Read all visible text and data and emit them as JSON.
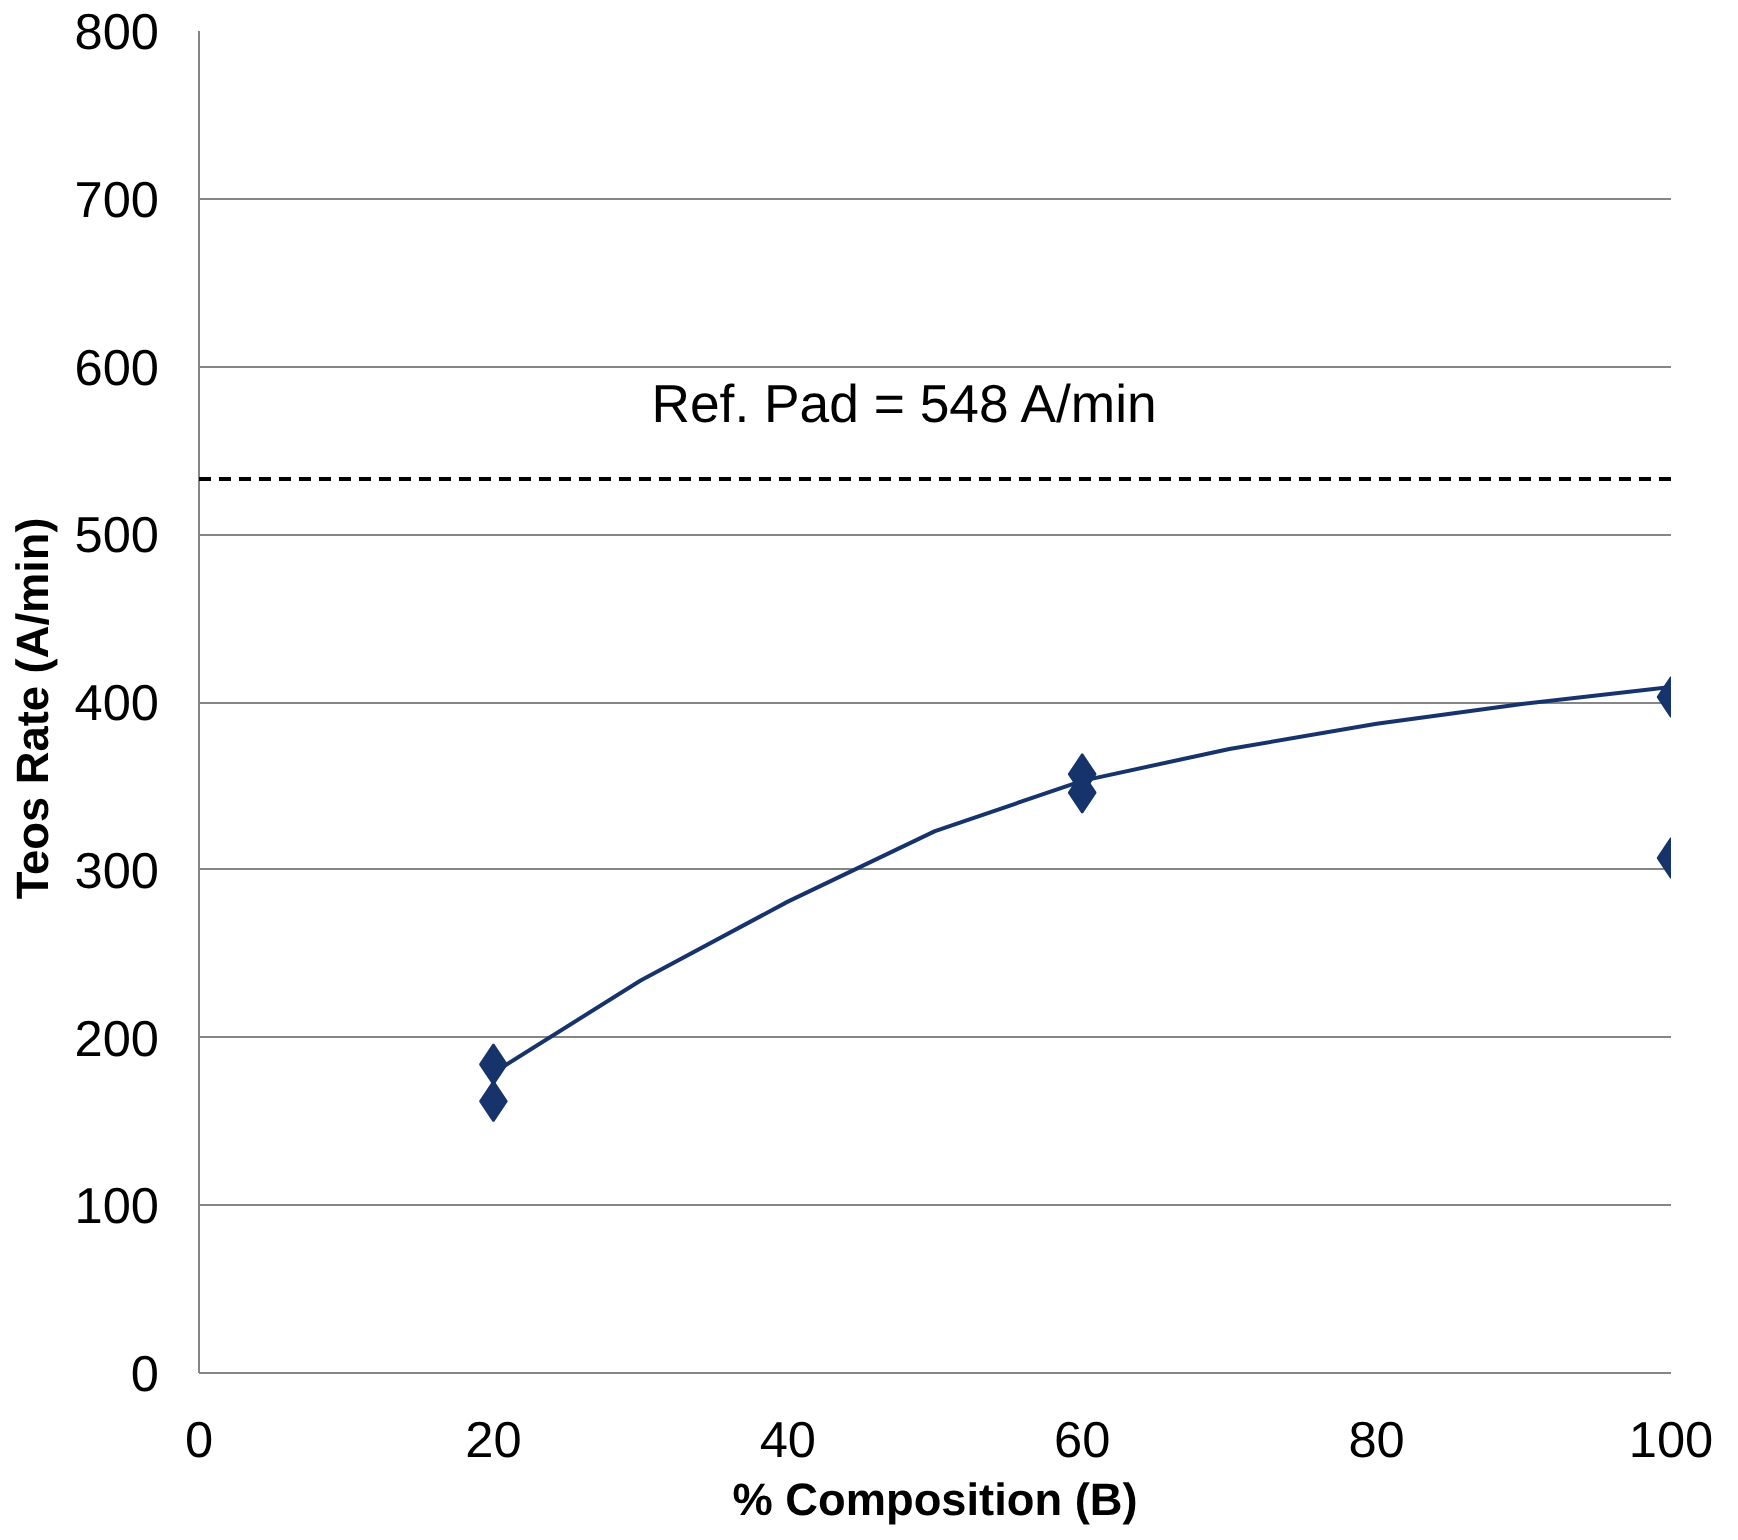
{
  "chart_data": {
    "type": "scatter",
    "xlabel": "% Composition (B)",
    "ylabel": "Teos  Rate (A/min)",
    "xlim": [
      0,
      100
    ],
    "xticks": [
      0,
      20,
      40,
      60,
      80,
      100
    ],
    "ylim": [
      0,
      800
    ],
    "yticks": [
      0,
      100,
      200,
      300,
      400,
      500,
      600,
      700,
      800
    ],
    "grid": "y",
    "marker": "diamond",
    "series": [
      {
        "color": "#17336b",
        "x": [
          20,
          20,
          60,
          60,
          100,
          100
        ],
        "values": [
          184,
          162,
          357,
          346,
          403,
          307
        ]
      },
      {
        "type": "line",
        "color": "#17336b",
        "marker": "none",
        "x": [
          20,
          30,
          40,
          50,
          60,
          70,
          80,
          90,
          100
        ],
        "values": [
          179,
          234,
          281,
          323,
          353,
          372,
          387,
          399,
          409
        ]
      }
    ],
    "ref_lines": [
      {
        "axis": "y",
        "value": 533,
        "color": "#000000",
        "line_style": "dashed"
      }
    ],
    "annotations": [
      "Ref. Pad = 548 A/min"
    ]
  }
}
